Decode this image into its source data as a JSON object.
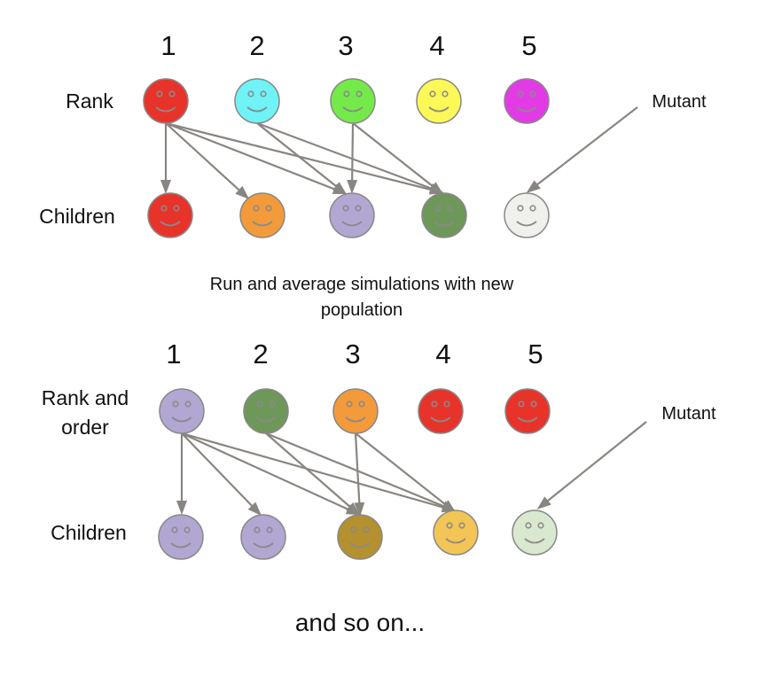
{
  "top_panel": {
    "ranks": [
      "1",
      "2",
      "3",
      "4",
      "5"
    ],
    "row_label_parent": "Rank",
    "row_label_children": "Children",
    "mutant_label": "Mutant",
    "parents": [
      {
        "color": "#e8332a"
      },
      {
        "color": "#6ff3f6"
      },
      {
        "color": "#74ea4a"
      },
      {
        "color": "#fbf858"
      },
      {
        "color": "#e23be6"
      }
    ],
    "children": [
      {
        "color": "#e8332a",
        "from": 1
      },
      {
        "color": "#f39a3a",
        "from": 1
      },
      {
        "color": "#b1a7d2",
        "from": [
          1,
          2,
          3
        ]
      },
      {
        "color": "#6d9859",
        "from": [
          1,
          2,
          3
        ]
      },
      {
        "color": "#f0f0ec",
        "from": "mutant"
      }
    ]
  },
  "mid_caption_lines": [
    "Run and average simulations with new",
    "population"
  ],
  "bottom_panel": {
    "ranks": [
      "1",
      "2",
      "3",
      "4",
      "5"
    ],
    "row_label_parent_lines": [
      "Rank and",
      "order"
    ],
    "row_label_children": "Children",
    "mutant_label": "Mutant",
    "parents": [
      {
        "color": "#b1a7d2"
      },
      {
        "color": "#6d9859"
      },
      {
        "color": "#f39a3a"
      },
      {
        "color": "#e8332a"
      },
      {
        "color": "#e8332a"
      }
    ],
    "children": [
      {
        "color": "#b1a7d2",
        "from": 1
      },
      {
        "color": "#b1a7d2",
        "from": 1
      },
      {
        "color": "#b5902e",
        "from": [
          1,
          2,
          3
        ]
      },
      {
        "color": "#f3c556",
        "from": [
          1,
          2,
          3
        ]
      },
      {
        "color": "#d9e8cf",
        "from": "mutant"
      }
    ]
  },
  "footer": "and so on...",
  "colors": {
    "arrow": "#898580",
    "face_stroke": "#888888",
    "face_feature": "#8a8a8a"
  }
}
